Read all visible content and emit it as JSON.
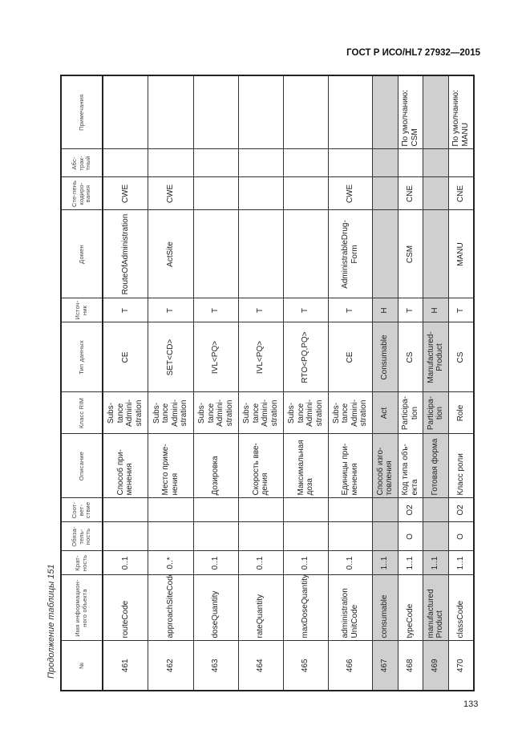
{
  "header": {
    "standard": "ГОСТ Р ИСО/HL7 27932—2015"
  },
  "caption": "Продолжение таблицы 151",
  "table": {
    "columns": [
      "№",
      "Имя информацион-ного объекта",
      "Крат-ность",
      "Обяза-тель-ность",
      "Соот-вет-ствие",
      "Описание",
      "Класс RIM",
      "Тип данных",
      "Источ-ник",
      "Домен",
      "Сте-пень кодиро-вания",
      "Абс-трак-тный",
      "Примечания"
    ],
    "rows": [
      {
        "gray": false,
        "cells": [
          "461",
          "routeCode",
          "0..1",
          "",
          "",
          "Способ при-менения",
          "Subs-tance Admini-stration",
          "CE",
          "T",
          "RouteOfAdministration",
          "CWE",
          "",
          ""
        ]
      },
      {
        "gray": false,
        "cells": [
          "462",
          "approachSiteCode",
          "0..*",
          "",
          "",
          "Место приме-нения",
          "Subs-tance Admini-stration",
          "SET<CD>",
          "T",
          "ActSite",
          "CWE",
          "",
          ""
        ]
      },
      {
        "gray": false,
        "cells": [
          "463",
          "doseQuantity",
          "0..1",
          "",
          "",
          "Дозировка",
          "Subs-tance Admini-stration",
          "IVL<PQ>",
          "T",
          "",
          "",
          "",
          ""
        ]
      },
      {
        "gray": false,
        "cells": [
          "464",
          "rateQuantity",
          "0..1",
          "",
          "",
          "Скорость вве-дения",
          "Subs-tance Admini-stration",
          "IVL<PQ>",
          "T",
          "",
          "",
          "",
          ""
        ]
      },
      {
        "gray": false,
        "cells": [
          "465",
          "maxDoseQuantity",
          "0..1",
          "",
          "",
          "Максимальная доза",
          "Subs-tance Admini-stration",
          "RTO<PQ,PQ>",
          "T",
          "",
          "",
          "",
          ""
        ]
      },
      {
        "gray": false,
        "cells": [
          "466",
          "administration UnitCode",
          "0..1",
          "",
          "",
          "Единицы при-менения",
          "Subs-tance Admini-stration",
          "CE",
          "T",
          "AdministrableDrug-Form",
          "CWE",
          "",
          ""
        ]
      },
      {
        "gray": true,
        "cells": [
          "467",
          "consumable",
          "1..1",
          "",
          "",
          "Способ изго-товления",
          "Act",
          "Consumable",
          "H",
          "",
          "",
          "",
          ""
        ]
      },
      {
        "gray": false,
        "cells": [
          "468",
          "typeCode",
          "1..1",
          "O",
          "O2",
          "Код типа объ-екта",
          "Participa-tion",
          "CS",
          "T",
          "CSM",
          "CNE",
          "",
          "По умолчанию: CSM"
        ]
      },
      {
        "gray": true,
        "cells": [
          "469",
          "manufactured Product",
          "1..1",
          "",
          "",
          "Готовая форма",
          "Participa-tion",
          "Manufactured-Product",
          "H",
          "",
          "",
          "",
          ""
        ]
      },
      {
        "gray": false,
        "cells": [
          "470",
          "classCode",
          "1..1",
          "O",
          "O2",
          "Класс роли",
          "Role",
          "CS",
          "T",
          "MANU",
          "CNE",
          "",
          "По умолчанию: MANU"
        ]
      }
    ]
  },
  "page_number": "133",
  "colors": {
    "gray_row": "#cfcfcf"
  }
}
